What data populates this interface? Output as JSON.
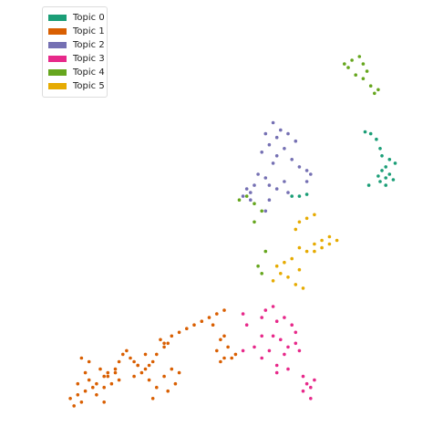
{
  "chart_data": {
    "type": "scatter",
    "title": "",
    "xlabel": "",
    "ylabel": "",
    "axes_visible": false,
    "grid": false,
    "legend_position": "top-left",
    "xlim": [
      0,
      100
    ],
    "ylim": [
      0,
      100
    ],
    "series": [
      {
        "name": "Topic 0",
        "color": "#1b9e77",
        "points": [
          [
            87.5,
            79.5
          ],
          [
            89,
            79
          ],
          [
            90.5,
            77.5
          ],
          [
            91.5,
            75
          ],
          [
            92,
            73
          ],
          [
            94,
            72
          ],
          [
            95.5,
            71
          ],
          [
            93,
            70
          ],
          [
            92,
            69
          ],
          [
            94,
            68
          ],
          [
            91,
            67.5
          ],
          [
            93,
            67
          ],
          [
            95,
            66.5
          ],
          [
            91.5,
            66
          ],
          [
            88.5,
            65
          ],
          [
            93,
            65
          ],
          [
            70,
            62
          ],
          [
            72,
            62.5
          ],
          [
            68,
            62
          ]
        ]
      },
      {
        "name": "Topic 1",
        "color": "#d95f02",
        "points": [
          [
            10,
            5
          ],
          [
            12,
            6
          ],
          [
            9,
            7
          ],
          [
            11,
            8
          ],
          [
            13,
            9
          ],
          [
            15,
            10
          ],
          [
            16,
            11
          ],
          [
            14,
            12
          ],
          [
            18,
            10
          ],
          [
            20,
            11
          ],
          [
            19,
            13
          ],
          [
            21,
            14
          ],
          [
            17,
            15
          ],
          [
            13,
            14
          ],
          [
            11,
            11
          ],
          [
            14,
            17
          ],
          [
            12,
            18
          ],
          [
            16,
            8
          ],
          [
            18,
            6
          ],
          [
            22,
            12
          ],
          [
            26,
            13
          ],
          [
            28,
            14
          ],
          [
            29,
            15
          ],
          [
            27,
            16
          ],
          [
            30,
            16
          ],
          [
            31,
            17
          ],
          [
            32,
            19
          ],
          [
            34,
            21
          ],
          [
            35,
            22
          ],
          [
            36,
            24
          ],
          [
            38,
            25
          ],
          [
            40,
            26
          ],
          [
            42,
            27
          ],
          [
            44,
            28
          ],
          [
            46,
            29
          ],
          [
            48,
            30
          ],
          [
            50,
            31
          ],
          [
            47,
            27
          ],
          [
            49,
            23
          ],
          [
            51,
            21
          ],
          [
            52,
            18
          ],
          [
            50,
            18
          ],
          [
            48,
            20
          ],
          [
            50,
            24
          ],
          [
            53,
            19
          ],
          [
            49,
            17
          ],
          [
            30,
            12
          ],
          [
            32,
            10
          ],
          [
            34,
            13
          ],
          [
            36,
            15
          ],
          [
            38,
            14
          ],
          [
            37,
            11
          ],
          [
            35,
            9
          ],
          [
            31,
            7
          ],
          [
            24,
            20
          ],
          [
            23,
            19
          ],
          [
            25,
            18
          ],
          [
            33,
            23
          ],
          [
            34,
            22
          ],
          [
            29,
            19
          ],
          [
            27,
            16
          ],
          [
            26,
            17
          ],
          [
            22,
            17
          ],
          [
            21,
            15
          ],
          [
            19,
            14
          ],
          [
            18,
            13
          ]
        ]
      },
      {
        "name": "Topic 2",
        "color": "#7570b3",
        "points": [
          [
            63,
            82
          ],
          [
            65,
            80
          ],
          [
            61,
            79
          ],
          [
            64,
            78
          ],
          [
            67,
            79
          ],
          [
            69,
            77
          ],
          [
            62,
            76
          ],
          [
            66,
            75
          ],
          [
            60,
            74
          ],
          [
            64,
            73
          ],
          [
            68,
            72
          ],
          [
            63,
            71
          ],
          [
            70,
            70
          ],
          [
            72,
            69
          ],
          [
            59,
            68
          ],
          [
            61,
            67
          ],
          [
            66,
            66
          ],
          [
            62,
            65
          ],
          [
            64,
            64
          ],
          [
            67,
            63
          ],
          [
            57,
            63
          ],
          [
            56,
            64
          ],
          [
            58,
            65
          ],
          [
            57,
            61
          ],
          [
            55,
            62
          ],
          [
            62,
            61
          ],
          [
            61,
            58
          ],
          [
            73,
            68
          ],
          [
            72,
            66
          ]
        ]
      },
      {
        "name": "Topic 3",
        "color": "#e7298a",
        "points": [
          [
            55,
            30
          ],
          [
            56,
            27
          ],
          [
            60,
            29
          ],
          [
            61,
            31
          ],
          [
            63,
            32
          ],
          [
            64,
            28
          ],
          [
            66,
            29
          ],
          [
            68,
            27
          ],
          [
            63,
            24
          ],
          [
            65,
            23
          ],
          [
            67,
            21
          ],
          [
            69,
            22
          ],
          [
            70,
            20
          ],
          [
            66,
            19
          ],
          [
            62,
            20
          ],
          [
            60,
            18
          ],
          [
            58,
            21
          ],
          [
            60,
            24
          ],
          [
            64,
            16
          ],
          [
            67,
            15
          ],
          [
            71,
            13
          ],
          [
            72,
            11
          ],
          [
            73,
            10
          ],
          [
            74,
            12
          ],
          [
            71,
            9
          ],
          [
            73,
            7
          ],
          [
            64,
            14
          ],
          [
            69,
            25
          ],
          [
            55,
            20
          ]
        ]
      },
      {
        "name": "Topic 4",
        "color": "#66a61e",
        "points": [
          [
            82,
            98
          ],
          [
            84,
            99
          ],
          [
            86,
            100
          ],
          [
            87,
            98
          ],
          [
            88,
            96
          ],
          [
            85,
            95
          ],
          [
            87,
            94
          ],
          [
            89,
            92
          ],
          [
            90,
            90
          ],
          [
            91,
            91
          ],
          [
            83,
            97
          ],
          [
            54,
            61
          ],
          [
            56,
            62
          ],
          [
            58,
            60
          ],
          [
            60,
            58
          ],
          [
            58,
            55
          ],
          [
            61,
            47
          ],
          [
            59,
            43
          ],
          [
            60,
            41
          ]
        ]
      },
      {
        "name": "Topic 5",
        "color": "#e6ab02",
        "points": [
          [
            70,
            55
          ],
          [
            72,
            56
          ],
          [
            74,
            57
          ],
          [
            69,
            53
          ],
          [
            70,
            48
          ],
          [
            72,
            47
          ],
          [
            74,
            49
          ],
          [
            76,
            50
          ],
          [
            78,
            51
          ],
          [
            80,
            50
          ],
          [
            78,
            49
          ],
          [
            76,
            48
          ],
          [
            74,
            47
          ],
          [
            68,
            45
          ],
          [
            66,
            44
          ],
          [
            64,
            43
          ],
          [
            65,
            41
          ],
          [
            63,
            39
          ],
          [
            67,
            40
          ],
          [
            69,
            38
          ],
          [
            71,
            37
          ],
          [
            70,
            42
          ]
        ]
      }
    ]
  }
}
